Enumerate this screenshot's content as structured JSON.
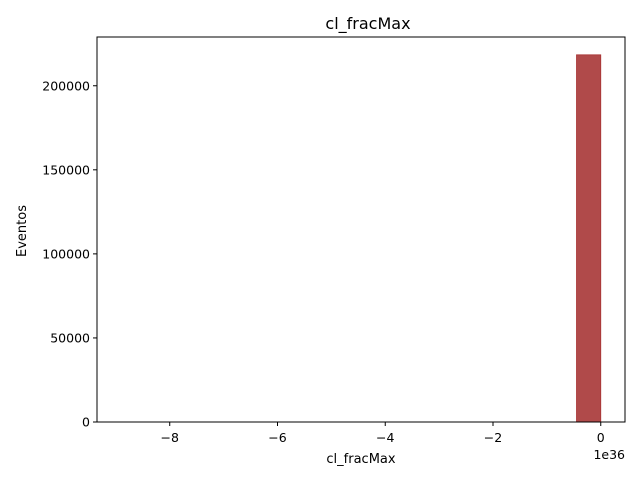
{
  "chart_data": {
    "type": "bar",
    "title": "cl_fracMax",
    "xlabel": "cl_fracMax",
    "ylabel": "Eventos",
    "x_offset_label": "1e36",
    "x_scale_exponent": 36,
    "xlim": [
      -9.35,
      0.45
    ],
    "ylim": [
      0,
      229000
    ],
    "xticks": [
      -8,
      -6,
      -4,
      -2,
      0
    ],
    "xtick_labels": [
      "−8",
      "−6",
      "−4",
      "−2",
      "0"
    ],
    "yticks": [
      0,
      50000,
      100000,
      150000,
      200000
    ],
    "ytick_labels": [
      "0",
      "50000",
      "100000",
      "150000",
      "200000"
    ],
    "bins": [
      {
        "x0": -0.45,
        "x1": 0.0,
        "count": 218400
      }
    ],
    "grid": false,
    "legend": "none",
    "bar_color": "#b04a4a",
    "bar_edge_color": "#a83232"
  }
}
